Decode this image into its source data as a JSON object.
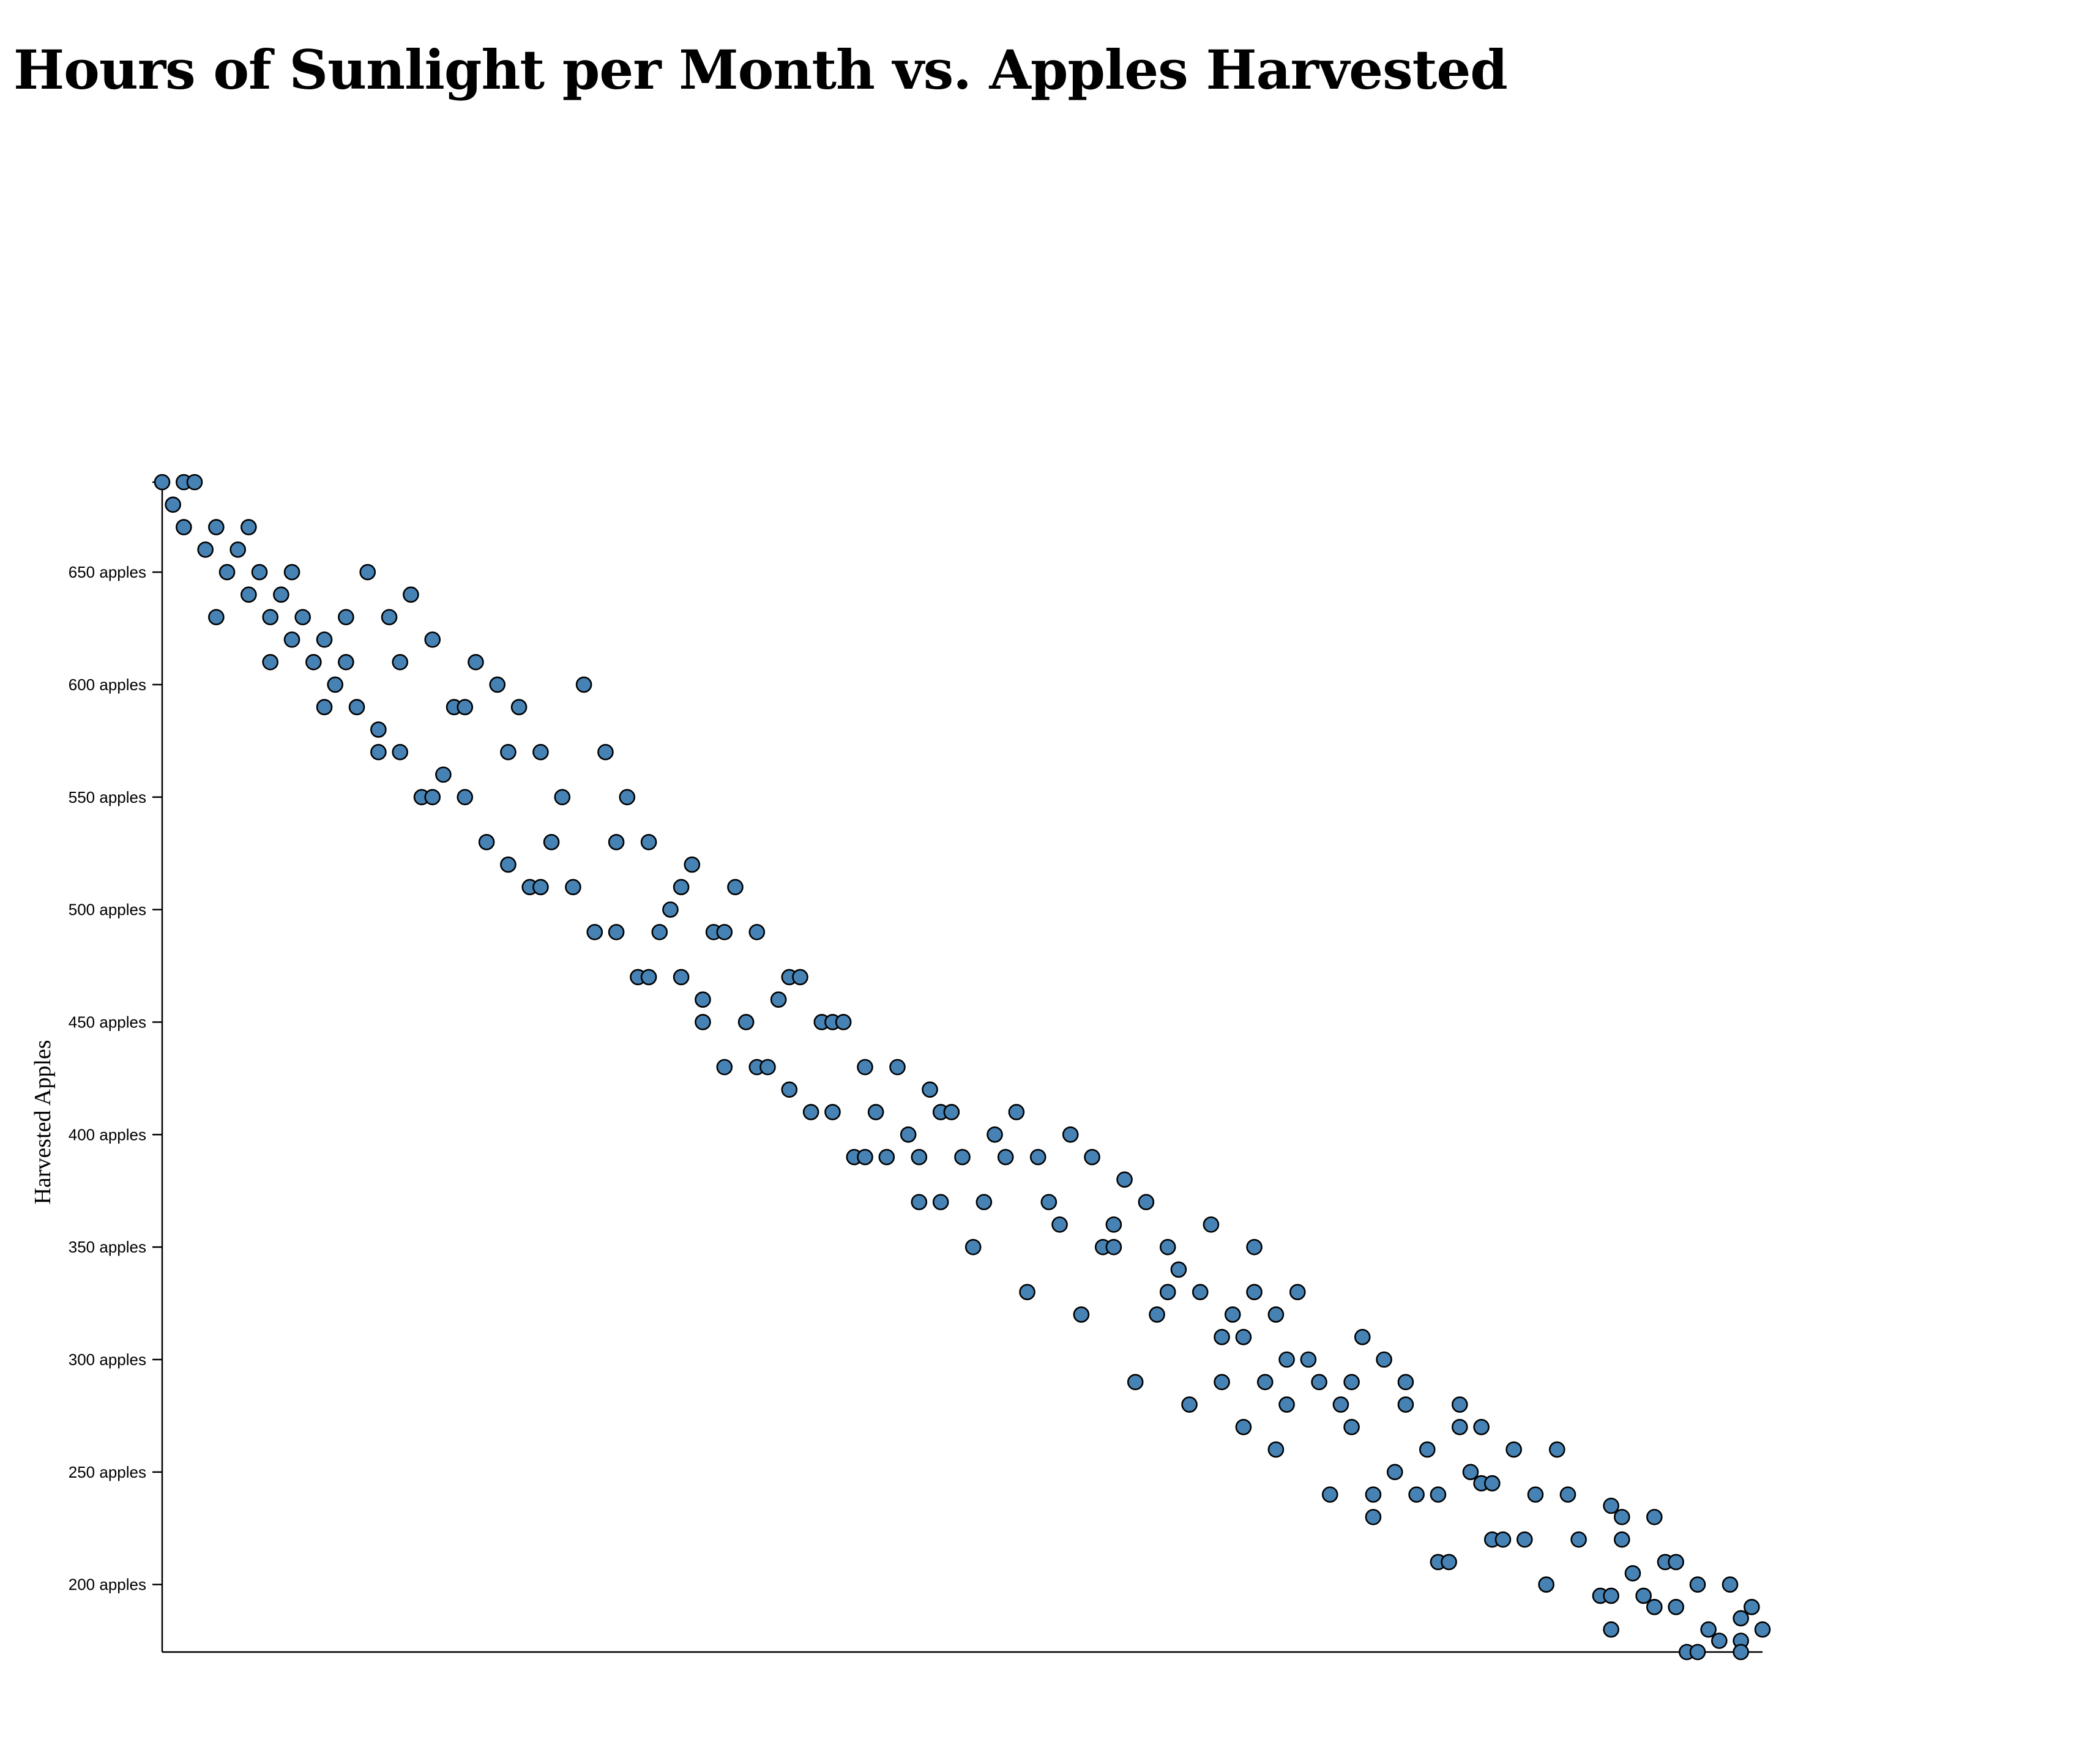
{
  "page": {
    "title": "Hours of Sunlight per Month vs. Apples Harvested"
  },
  "chart_data": {
    "type": "scatter",
    "title": "Hours of Sunlight per Month vs. Apples Harvested",
    "xlabel": "",
    "ylabel": "Harvested Apples",
    "y_tick_suffix": " apples",
    "xlim": [
      0,
      148
    ],
    "ylim": [
      170,
      690
    ],
    "y_ticks": [
      200,
      250,
      300,
      350,
      400,
      450,
      500,
      550,
      600,
      650
    ],
    "x_ticks_shown": false,
    "grid": false,
    "legend": "none",
    "marker_color": "#4682b4",
    "marker_edge_color": "#000000",
    "points": [
      [
        0,
        690
      ],
      [
        2,
        690
      ],
      [
        3,
        690
      ],
      [
        1,
        680
      ],
      [
        2,
        670
      ],
      [
        5,
        670
      ],
      [
        8,
        670
      ],
      [
        4,
        660
      ],
      [
        7,
        660
      ],
      [
        6,
        650
      ],
      [
        9,
        650
      ],
      [
        12,
        650
      ],
      [
        19,
        650
      ],
      [
        5,
        630
      ],
      [
        10,
        630
      ],
      [
        13,
        630
      ],
      [
        17,
        630
      ],
      [
        21,
        630
      ],
      [
        8,
        640
      ],
      [
        11,
        640
      ],
      [
        23,
        640
      ],
      [
        12,
        620
      ],
      [
        15,
        620
      ],
      [
        25,
        620
      ],
      [
        10,
        610
      ],
      [
        14,
        610
      ],
      [
        17,
        610
      ],
      [
        22,
        610
      ],
      [
        29,
        610
      ],
      [
        16,
        600
      ],
      [
        31,
        600
      ],
      [
        39,
        600
      ],
      [
        15,
        590
      ],
      [
        18,
        590
      ],
      [
        27,
        590
      ],
      [
        28,
        590
      ],
      [
        33,
        590
      ],
      [
        20,
        580
      ],
      [
        20,
        570
      ],
      [
        22,
        570
      ],
      [
        32,
        570
      ],
      [
        35,
        570
      ],
      [
        41,
        570
      ],
      [
        26,
        560
      ],
      [
        24,
        550
      ],
      [
        25,
        550
      ],
      [
        28,
        550
      ],
      [
        37,
        550
      ],
      [
        43,
        550
      ],
      [
        30,
        530
      ],
      [
        36,
        530
      ],
      [
        42,
        530
      ],
      [
        45,
        530
      ],
      [
        32,
        520
      ],
      [
        49,
        520
      ],
      [
        34,
        510
      ],
      [
        35,
        510
      ],
      [
        38,
        510
      ],
      [
        48,
        510
      ],
      [
        53,
        510
      ],
      [
        40,
        490
      ],
      [
        42,
        490
      ],
      [
        46,
        490
      ],
      [
        51,
        490
      ],
      [
        52,
        490
      ],
      [
        55,
        490
      ],
      [
        47,
        500
      ],
      [
        44,
        470
      ],
      [
        45,
        470
      ],
      [
        48,
        470
      ],
      [
        58,
        470
      ],
      [
        59,
        470
      ],
      [
        50,
        460
      ],
      [
        57,
        460
      ],
      [
        50,
        450
      ],
      [
        54,
        450
      ],
      [
        61,
        450
      ],
      [
        62,
        450
      ],
      [
        63,
        450
      ],
      [
        52,
        430
      ],
      [
        55,
        430
      ],
      [
        56,
        430
      ],
      [
        65,
        430
      ],
      [
        68,
        430
      ],
      [
        58,
        420
      ],
      [
        71,
        420
      ],
      [
        60,
        410
      ],
      [
        62,
        410
      ],
      [
        66,
        410
      ],
      [
        72,
        410
      ],
      [
        73,
        410
      ],
      [
        79,
        410
      ],
      [
        69,
        400
      ],
      [
        77,
        400
      ],
      [
        84,
        400
      ],
      [
        64,
        390
      ],
      [
        65,
        390
      ],
      [
        67,
        390
      ],
      [
        70,
        390
      ],
      [
        74,
        390
      ],
      [
        78,
        390
      ],
      [
        81,
        390
      ],
      [
        86,
        390
      ],
      [
        70,
        370
      ],
      [
        72,
        370
      ],
      [
        76,
        370
      ],
      [
        82,
        370
      ],
      [
        91,
        370
      ],
      [
        89,
        380
      ],
      [
        83,
        360
      ],
      [
        88,
        360
      ],
      [
        97,
        360
      ],
      [
        75,
        350
      ],
      [
        87,
        350
      ],
      [
        88,
        350
      ],
      [
        93,
        350
      ],
      [
        101,
        350
      ],
      [
        94,
        340
      ],
      [
        80,
        330
      ],
      [
        93,
        330
      ],
      [
        96,
        330
      ],
      [
        101,
        330
      ],
      [
        105,
        330
      ],
      [
        85,
        320
      ],
      [
        92,
        320
      ],
      [
        99,
        320
      ],
      [
        103,
        320
      ],
      [
        98,
        310
      ],
      [
        100,
        310
      ],
      [
        111,
        310
      ],
      [
        90,
        290
      ],
      [
        98,
        290
      ],
      [
        102,
        290
      ],
      [
        107,
        290
      ],
      [
        110,
        290
      ],
      [
        115,
        290
      ],
      [
        104,
        300
      ],
      [
        106,
        300
      ],
      [
        113,
        300
      ],
      [
        95,
        280
      ],
      [
        104,
        280
      ],
      [
        109,
        280
      ],
      [
        115,
        280
      ],
      [
        120,
        280
      ],
      [
        100,
        270
      ],
      [
        110,
        270
      ],
      [
        120,
        270
      ],
      [
        122,
        270
      ],
      [
        103,
        260
      ],
      [
        117,
        260
      ],
      [
        125,
        260
      ],
      [
        129,
        260
      ],
      [
        114,
        250
      ],
      [
        121,
        250
      ],
      [
        108,
        240
      ],
      [
        112,
        240
      ],
      [
        116,
        240
      ],
      [
        118,
        240
      ],
      [
        127,
        240
      ],
      [
        130,
        240
      ],
      [
        122,
        245
      ],
      [
        123,
        245
      ],
      [
        112,
        230
      ],
      [
        134,
        235
      ],
      [
        135,
        230
      ],
      [
        138,
        230
      ],
      [
        123,
        220
      ],
      [
        124,
        220
      ],
      [
        126,
        220
      ],
      [
        131,
        220
      ],
      [
        135,
        220
      ],
      [
        118,
        210
      ],
      [
        119,
        210
      ],
      [
        139,
        210
      ],
      [
        140,
        210
      ],
      [
        128,
        200
      ],
      [
        136,
        205
      ],
      [
        142,
        200
      ],
      [
        145,
        200
      ],
      [
        133,
        195
      ],
      [
        134,
        195
      ],
      [
        137,
        195
      ],
      [
        138,
        190
      ],
      [
        140,
        190
      ],
      [
        147,
        190
      ],
      [
        146,
        185
      ],
      [
        134,
        180
      ],
      [
        143,
        180
      ],
      [
        148,
        180
      ],
      [
        144,
        175
      ],
      [
        146,
        175
      ],
      [
        141,
        170
      ],
      [
        142,
        170
      ],
      [
        146,
        170
      ]
    ]
  }
}
